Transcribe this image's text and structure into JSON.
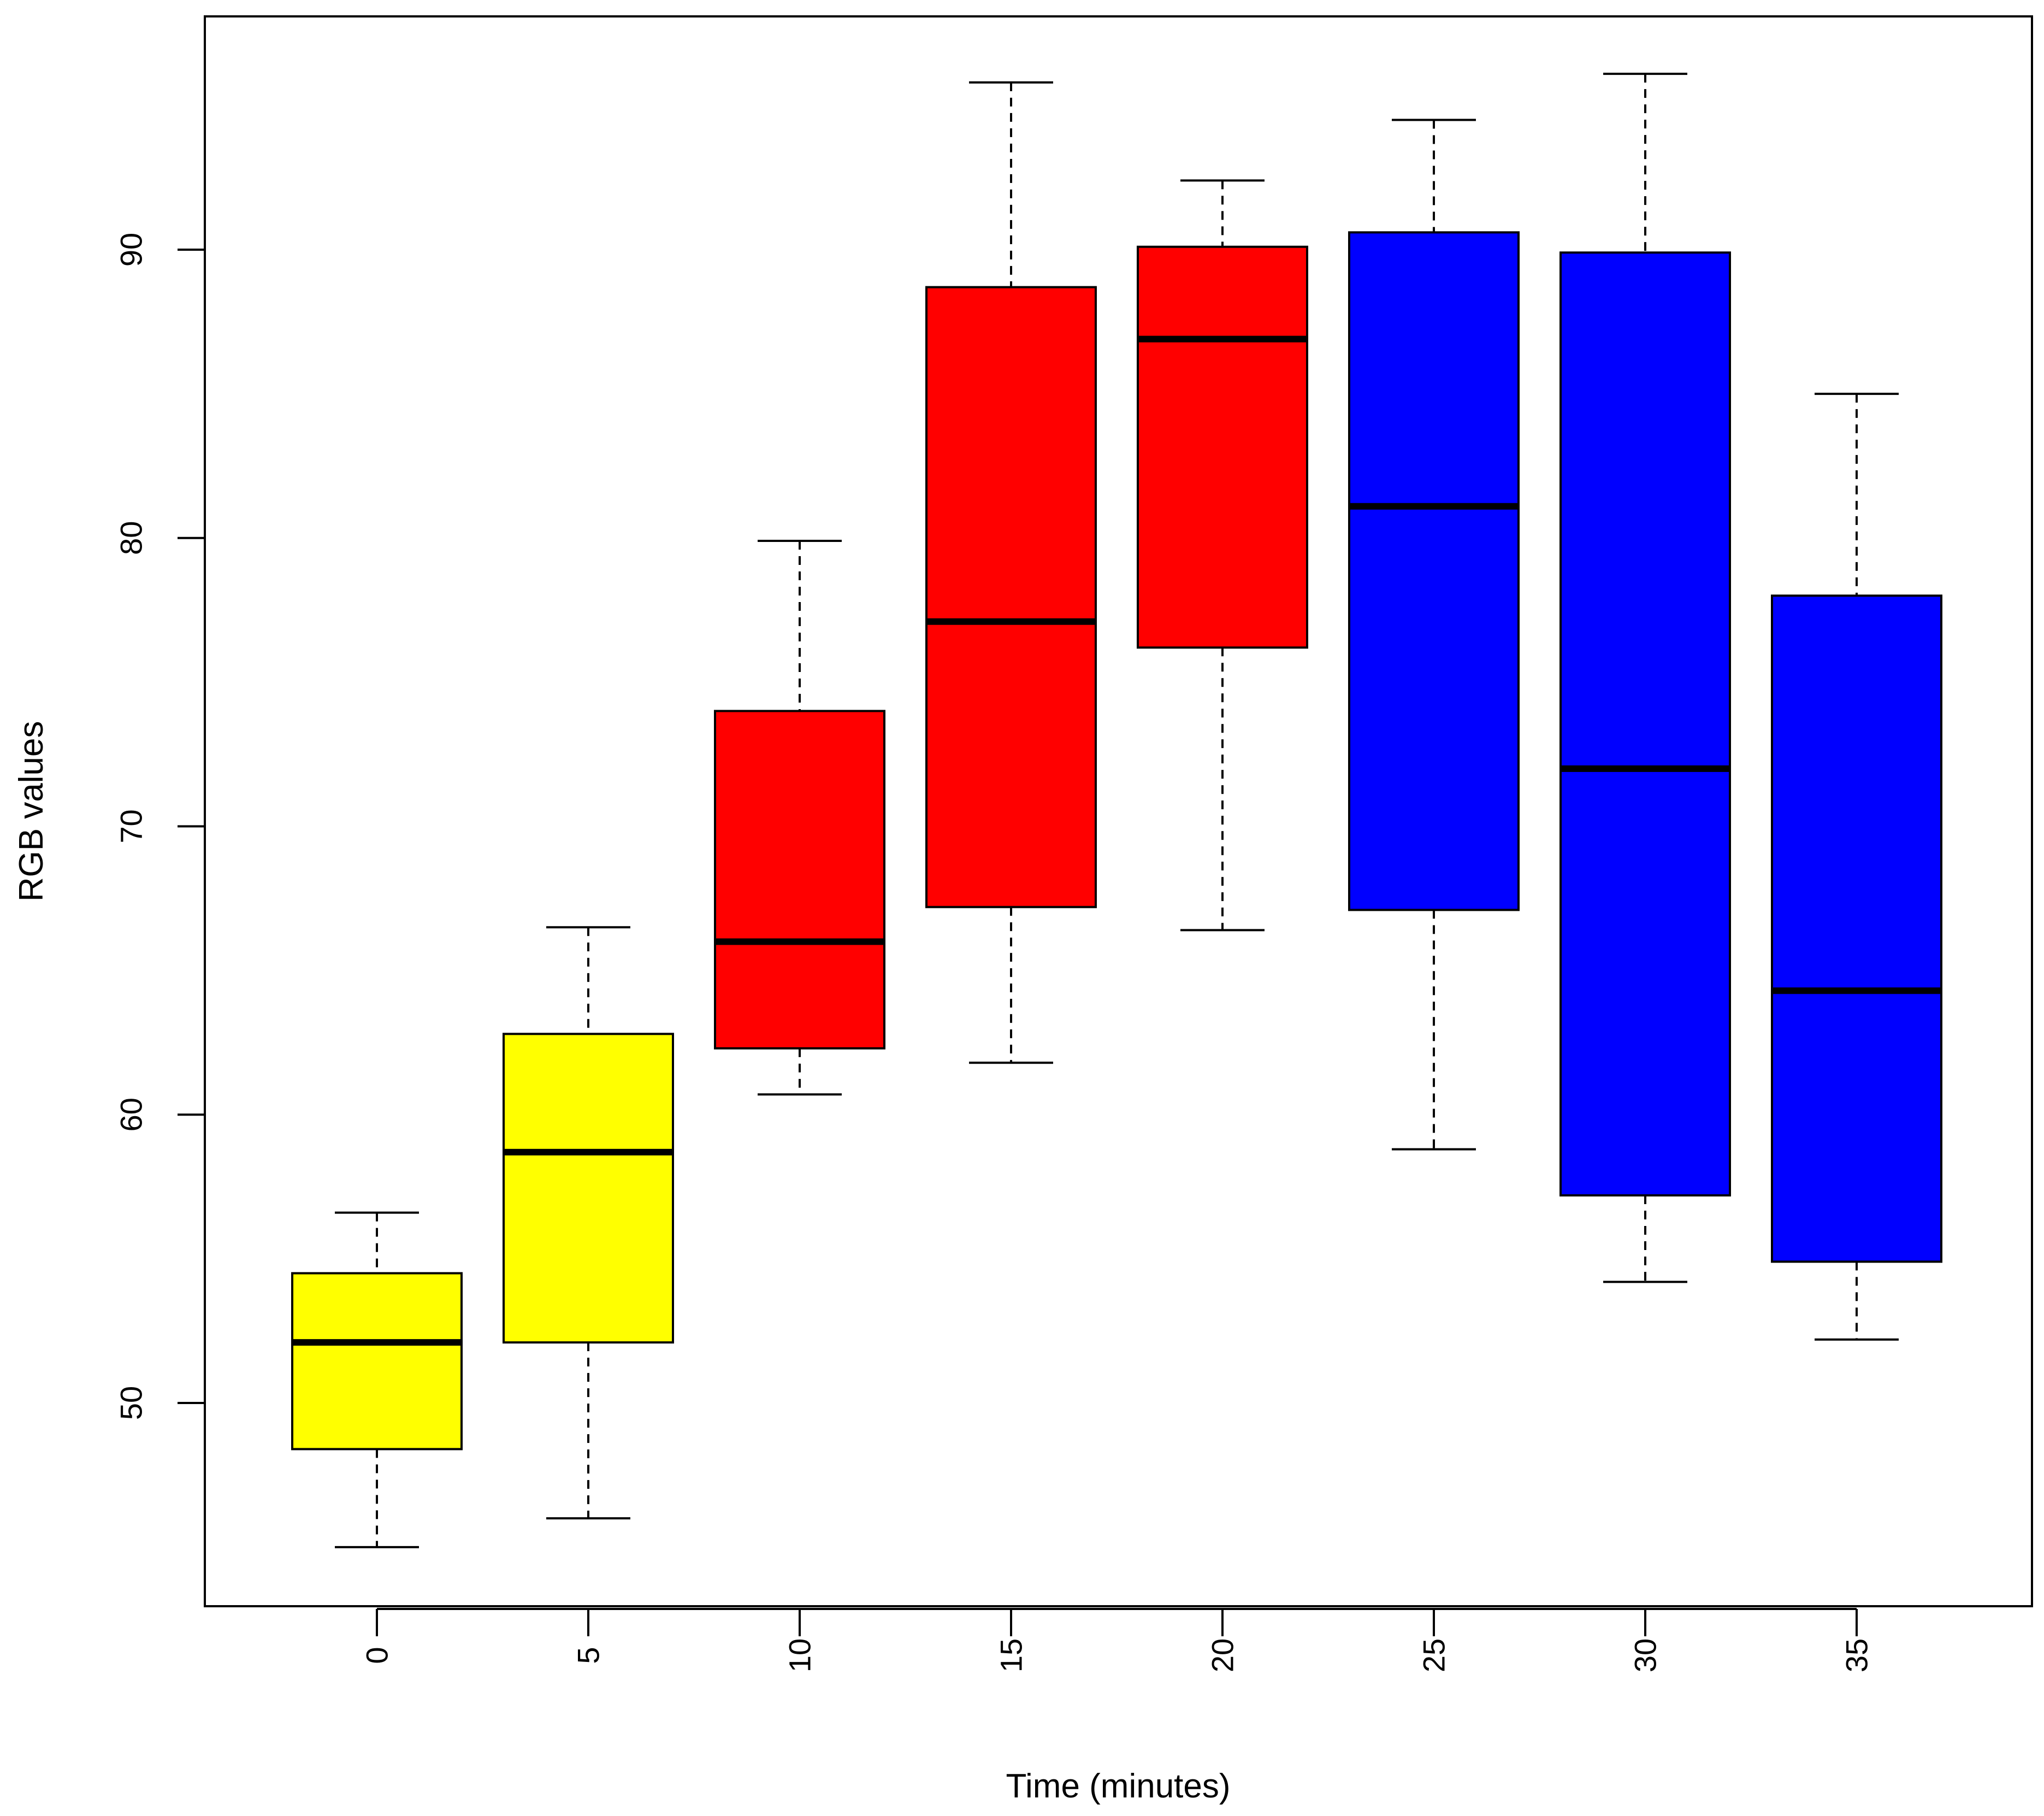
{
  "chart_data": {
    "type": "boxplot",
    "title": "",
    "xlabel": "Time (minutes)",
    "ylabel": "RGB values",
    "categories": [
      "0",
      "5",
      "10",
      "15",
      "20",
      "25",
      "30",
      "35"
    ],
    "ylim": [
      43,
      98
    ],
    "yticks": [
      50,
      60,
      70,
      80,
      90
    ],
    "boxes": [
      {
        "category": "0",
        "min": 45.0,
        "q1": 48.4,
        "median": 52.1,
        "q3": 54.5,
        "max": 56.6,
        "color": "#ffff00"
      },
      {
        "category": "5",
        "min": 46.0,
        "q1": 52.1,
        "median": 58.7,
        "q3": 62.8,
        "max": 66.5,
        "color": "#ffff00"
      },
      {
        "category": "10",
        "min": 60.7,
        "q1": 62.3,
        "median": 66.0,
        "q3": 74.0,
        "max": 79.9,
        "color": "#ff0000"
      },
      {
        "category": "15",
        "min": 61.8,
        "q1": 67.2,
        "median": 77.1,
        "q3": 88.7,
        "max": 95.8,
        "color": "#ff0000"
      },
      {
        "category": "20",
        "min": 66.4,
        "q1": 76.2,
        "median": 86.9,
        "q3": 90.1,
        "max": 92.4,
        "color": "#ff0000"
      },
      {
        "category": "25",
        "min": 58.8,
        "q1": 67.1,
        "median": 81.1,
        "q3": 90.6,
        "max": 94.5,
        "color": "#0000ff"
      },
      {
        "category": "30",
        "min": 54.2,
        "q1": 57.2,
        "median": 72.0,
        "q3": 89.9,
        "max": 96.1,
        "color": "#0000ff"
      },
      {
        "category": "35",
        "min": 52.2,
        "q1": 54.9,
        "median": 64.3,
        "q3": 78.0,
        "max": 85.0,
        "color": "#0000ff"
      }
    ]
  }
}
